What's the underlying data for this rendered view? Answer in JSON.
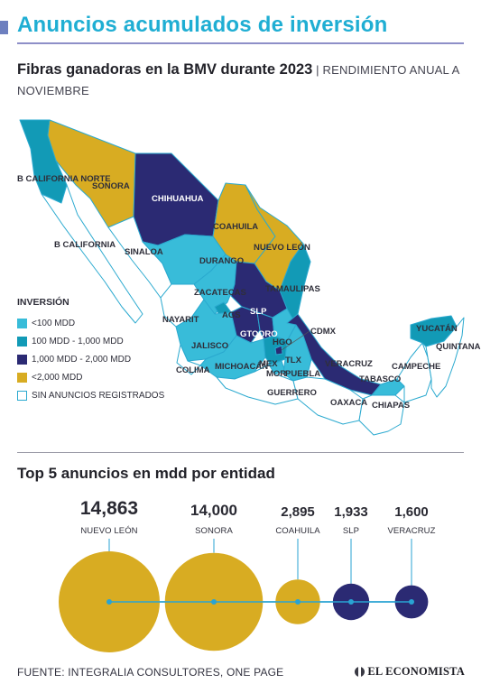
{
  "header": {
    "title": "Anuncios acumulados de inversión",
    "subtitle_bold": "Fibras ganadoras en la BMV durante 2023",
    "subtitle_light": " | RENDIMIENTO ANUAL A NOVIEMBRE"
  },
  "colors": {
    "under_100": "#38bcd9",
    "from_100_to_1000": "#129ab6",
    "from_1000_to_2000": "#2b2a73",
    "over_2000": "#d8ac22",
    "none": "#ffffff",
    "border": "#2aa9cf",
    "title": "#1faed3"
  },
  "legend": {
    "title": "INVERSIÓN",
    "items": [
      {
        "label": "<100 MDD",
        "category": "under_100"
      },
      {
        "label": "100 MDD - 1,000 MDD",
        "category": "from_100_to_1000"
      },
      {
        "label": "1,000 MDD - 2,000 MDD",
        "category": "from_1000_to_2000"
      },
      {
        "label": "<2,000 MDD",
        "category": "over_2000"
      },
      {
        "label": "SIN ANUNCIOS REGISTRADOS",
        "category": "none"
      }
    ]
  },
  "map": {
    "states": [
      {
        "id": "bcn",
        "label": "B CALIFORNIA NORTE",
        "category": "from_100_to_1000"
      },
      {
        "id": "bcs",
        "label": "B CALIFORNIA",
        "category": "none"
      },
      {
        "id": "son",
        "label": "SONORA",
        "category": "over_2000"
      },
      {
        "id": "chih",
        "label": "CHIHUAHUA",
        "category": "from_1000_to_2000"
      },
      {
        "id": "coah",
        "label": "COAHUILA",
        "category": "over_2000"
      },
      {
        "id": "nl",
        "label": "NUEVO LEÓN",
        "category": "over_2000"
      },
      {
        "id": "tamps",
        "label": "TAMAULIPAS",
        "category": "from_100_to_1000"
      },
      {
        "id": "sin",
        "label": "SINALOA",
        "category": "none"
      },
      {
        "id": "dgo",
        "label": "DURANGO",
        "category": "under_100"
      },
      {
        "id": "zac",
        "label": "ZACATECAS",
        "category": "under_100"
      },
      {
        "id": "nay",
        "label": "NAYARIT",
        "category": "none"
      },
      {
        "id": "ags",
        "label": "AGS",
        "category": "from_100_to_1000"
      },
      {
        "id": "slp",
        "label": "SLP",
        "category": "from_1000_to_2000"
      },
      {
        "id": "jal",
        "label": "JALISCO",
        "category": "under_100"
      },
      {
        "id": "gto",
        "label": "GTO",
        "category": "from_1000_to_2000"
      },
      {
        "id": "qro",
        "label": "QRO",
        "category": "from_1000_to_2000"
      },
      {
        "id": "hgo",
        "label": "HGO",
        "category": "under_100"
      },
      {
        "id": "col",
        "label": "COLIMA",
        "category": "none"
      },
      {
        "id": "mich",
        "label": "MICHOACÁN",
        "category": "under_100"
      },
      {
        "id": "mex",
        "label": "MEX",
        "category": "from_100_to_1000"
      },
      {
        "id": "mor",
        "label": "MOR",
        "category": "under_100"
      },
      {
        "id": "tlx",
        "label": "TLX",
        "category": "under_100"
      },
      {
        "id": "pue",
        "label": "PUEBLA",
        "category": "under_100"
      },
      {
        "id": "cdmx",
        "label": "CDMX",
        "category": "from_1000_to_2000"
      },
      {
        "id": "ver",
        "label": "VERACRUZ",
        "category": "from_1000_to_2000"
      },
      {
        "id": "gro",
        "label": "GUERRERO",
        "category": "none"
      },
      {
        "id": "oax",
        "label": "OAXACA",
        "category": "none"
      },
      {
        "id": "tab",
        "label": "TABASCO",
        "category": "under_100"
      },
      {
        "id": "chis",
        "label": "CHIAPAS",
        "category": "none"
      },
      {
        "id": "camp",
        "label": "CAMPECHE",
        "category": "none"
      },
      {
        "id": "yuc",
        "label": "YUCATÁN",
        "category": "from_100_to_1000"
      },
      {
        "id": "qroo",
        "label": "QUINTANA ROO",
        "category": "none"
      }
    ]
  },
  "top5": {
    "title": "Top 5 anuncios en mdd por entidad",
    "items": [
      {
        "value": "14,863",
        "amount": 14863,
        "name": "NUEVO LEÓN",
        "color": "#d8ac22"
      },
      {
        "value": "14,000",
        "amount": 14000,
        "name": "SONORA",
        "color": "#d8ac22"
      },
      {
        "value": "2,895",
        "amount": 2895,
        "name": "COAHUILA",
        "color": "#d8ac22"
      },
      {
        "value": "1,933",
        "amount": 1933,
        "name": "SLP",
        "color": "#2b2a73"
      },
      {
        "value": "1,600",
        "amount": 1600,
        "name": "VERACRUZ",
        "color": "#2b2a73"
      }
    ]
  },
  "footer": {
    "source": "FUENTE: INTEGRALIA CONSULTORES, ONE PAGE",
    "logo": "EL ECONOMISTA"
  }
}
